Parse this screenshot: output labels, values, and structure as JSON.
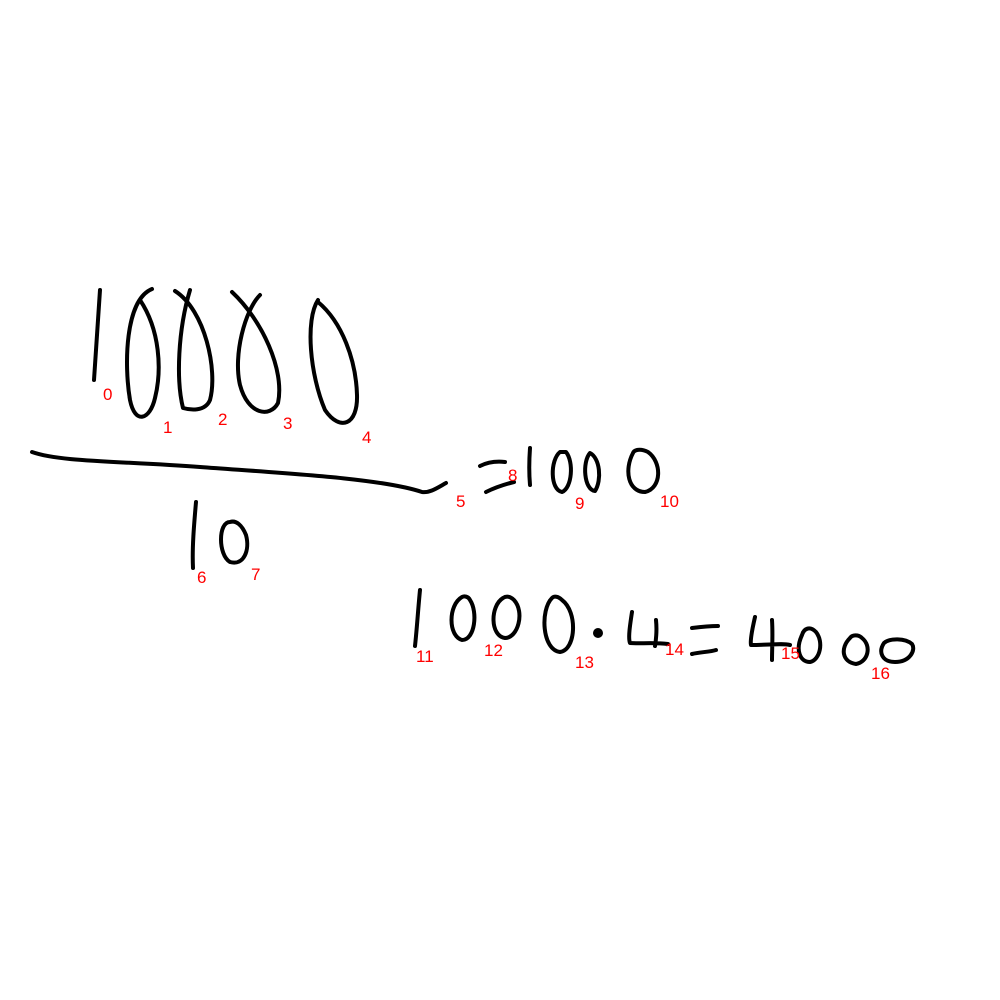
{
  "ink_color": "#000000",
  "label_color": "#ff0000",
  "background": "#ffffff",
  "stroke_labels": [
    "0",
    "1",
    "2",
    "3",
    "4",
    "5",
    "6",
    "7",
    "8",
    "9",
    "10",
    "11",
    "12",
    "13",
    "14",
    "15",
    "16"
  ]
}
